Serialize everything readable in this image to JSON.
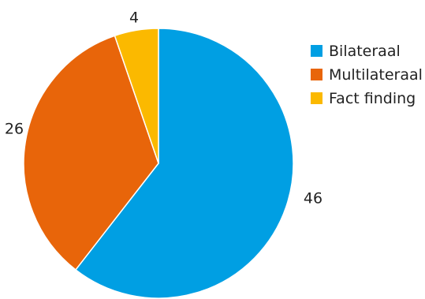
{
  "chart_data": {
    "type": "pie",
    "categories": [
      "Bilateraal",
      "Multilateraal",
      "Fact finding"
    ],
    "values": [
      46,
      26,
      4
    ],
    "colors": [
      "#009fe3",
      "#e8650a",
      "#fbb900"
    ],
    "title": "",
    "legend_position": "right",
    "start_angle": "12 o'clock",
    "direction": "clockwise"
  }
}
